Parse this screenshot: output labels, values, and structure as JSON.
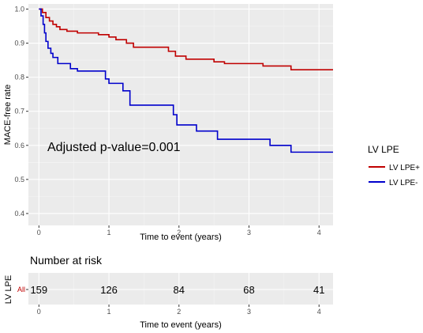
{
  "chart_data": [
    {
      "type": "line",
      "subtype": "kaplan-meier",
      "xlabel": "Time to event (years)",
      "ylabel": "MACE-free rate",
      "xlim": [
        -0.15,
        4.2
      ],
      "ylim": [
        0.365,
        1.015
      ],
      "xticks": [
        0,
        1,
        2,
        3,
        4
      ],
      "yticks": [
        0.4,
        0.5,
        0.6,
        0.7,
        0.8,
        0.9,
        1.0
      ],
      "ytick_labels": [
        "0.4",
        "0.5",
        "0.6",
        "0.7",
        "0.8",
        "0.9",
        "1.0"
      ],
      "grid": true,
      "annotation": "Adjusted p-value=0.001",
      "legend": {
        "title": "LV LPE",
        "position": "right"
      },
      "series": [
        {
          "name": "LV LPE+",
          "color": "#c00000",
          "steps": [
            [
              0,
              1.0
            ],
            [
              0.05,
              0.99
            ],
            [
              0.1,
              0.975
            ],
            [
              0.15,
              0.965
            ],
            [
              0.2,
              0.955
            ],
            [
              0.25,
              0.948
            ],
            [
              0.3,
              0.94
            ],
            [
              0.4,
              0.935
            ],
            [
              0.55,
              0.93
            ],
            [
              0.85,
              0.925
            ],
            [
              1.0,
              0.918
            ],
            [
              1.1,
              0.91
            ],
            [
              1.25,
              0.9
            ],
            [
              1.35,
              0.888
            ],
            [
              1.85,
              0.876
            ],
            [
              1.95,
              0.862
            ],
            [
              2.1,
              0.853
            ],
            [
              2.5,
              0.845
            ],
            [
              2.65,
              0.84
            ],
            [
              3.2,
              0.833
            ],
            [
              3.6,
              0.822
            ],
            [
              4.2,
              0.822
            ]
          ]
        },
        {
          "name": "LV LPE-",
          "color": "#0000cc",
          "steps": [
            [
              0,
              1.0
            ],
            [
              0.03,
              0.98
            ],
            [
              0.06,
              0.955
            ],
            [
              0.08,
              0.93
            ],
            [
              0.1,
              0.905
            ],
            [
              0.13,
              0.885
            ],
            [
              0.17,
              0.87
            ],
            [
              0.2,
              0.858
            ],
            [
              0.27,
              0.84
            ],
            [
              0.45,
              0.825
            ],
            [
              0.55,
              0.818
            ],
            [
              0.95,
              0.795
            ],
            [
              1.0,
              0.782
            ],
            [
              1.2,
              0.76
            ],
            [
              1.3,
              0.718
            ],
            [
              1.92,
              0.69
            ],
            [
              1.97,
              0.66
            ],
            [
              2.25,
              0.642
            ],
            [
              2.55,
              0.618
            ],
            [
              3.3,
              0.6
            ],
            [
              3.6,
              0.58
            ],
            [
              4.2,
              0.58
            ]
          ]
        }
      ]
    },
    {
      "type": "table",
      "title": "Number at risk",
      "ylabel": "LV LPE",
      "xlabel": "Time to event (years)",
      "xticks": [
        0,
        1,
        2,
        3,
        4
      ],
      "strata": "All",
      "values": [
        159,
        126,
        84,
        68,
        41
      ]
    }
  ],
  "text": {
    "annotation": "Adjusted p-value=0.001",
    "xlabel": "Time to event (years)",
    "ylabel": "MACE-free rate",
    "legend_title": "LV LPE",
    "legend_1": "LV LPE+",
    "legend_2": "LV LPE-",
    "risk_title": "Number at risk",
    "risk_ylabel": "LV LPE",
    "risk_strata": "All",
    "risk_xlabel": "Time to event (years)"
  }
}
